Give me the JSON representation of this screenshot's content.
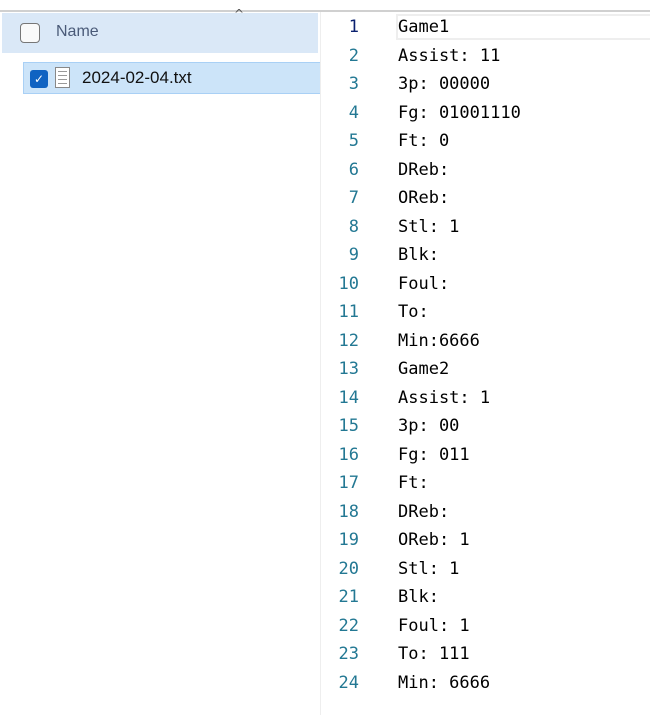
{
  "explorer": {
    "column_header": "Name",
    "sort_icon": "chevron-up-icon",
    "files": [
      {
        "name": "2024-02-04.txt",
        "checked": true,
        "icon": "text-file-icon"
      }
    ]
  },
  "editor": {
    "current_line": 1,
    "lines": [
      "Game1",
      "Assist: 11",
      "3p: 00000",
      "Fg: 01001110",
      "Ft: 0",
      "DReb:",
      "OReb:",
      "Stl: 1",
      "Blk:",
      "Foul:",
      "To:",
      "Min:6666",
      "Game2",
      "Assist: 1",
      "3p: 00",
      "Fg: 011",
      "Ft:",
      "DReb:",
      "OReb: 1",
      "Stl: 1",
      "Blk:",
      "Foul: 1",
      "To: 111",
      "Min: 6666"
    ]
  },
  "colors": {
    "selection": "#cce4f9",
    "header": "#dae8f7",
    "line_number": "#237893",
    "checkbox": "#1063c2"
  }
}
